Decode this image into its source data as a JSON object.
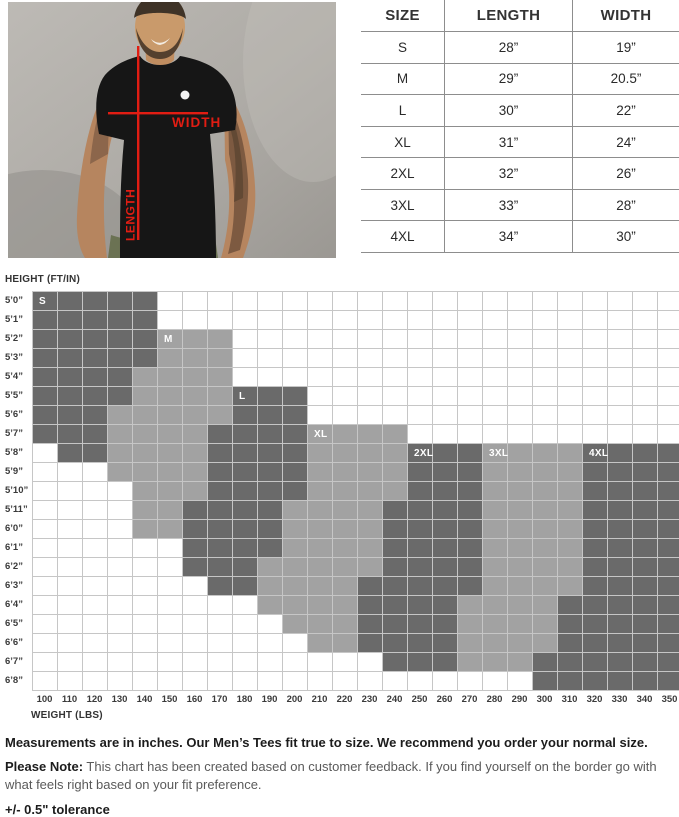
{
  "photo": {
    "width_label": "WIDTH",
    "length_label": "LENGTH",
    "accent_red": "#e11d13"
  },
  "size_table": {
    "headers": [
      "SIZE",
      "LENGTH",
      "WIDTH"
    ],
    "rows": [
      {
        "size": "S",
        "length": "28”",
        "width": "19”"
      },
      {
        "size": "M",
        "length": "29”",
        "width": "20.5”"
      },
      {
        "size": "L",
        "length": "30”",
        "width": "22”"
      },
      {
        "size": "XL",
        "length": "31”",
        "width": "24”"
      },
      {
        "size": "2XL",
        "length": "32”",
        "width": "26”"
      },
      {
        "size": "3XL",
        "length": "33”",
        "width": "28”"
      },
      {
        "size": "4XL",
        "length": "34”",
        "width": "30”"
      }
    ]
  },
  "fit_chart": {
    "y_axis_title": "HEIGHT (FT/IN)",
    "x_axis_title": "WEIGHT (LBS)",
    "colors": {
      "dark": "#6a6a6a",
      "medium": "#a2a2a2",
      "empty": "#ffffff",
      "gridline": "#c6c6c6"
    },
    "zone_labels": [
      {
        "text": "S",
        "row": 0,
        "col": 0
      },
      {
        "text": "M",
        "row": 2,
        "col": 5
      },
      {
        "text": "L",
        "row": 5,
        "col": 8
      },
      {
        "text": "XL",
        "row": 7,
        "col": 11
      },
      {
        "text": "2XL",
        "row": 8,
        "col": 15
      },
      {
        "text": "3XL",
        "row": 8,
        "col": 18
      },
      {
        "text": "4XL",
        "row": 8,
        "col": 22
      }
    ]
  },
  "chart_data": {
    "type": "heatmap",
    "title": "Size recommendation by height and weight",
    "xlabel": "WEIGHT (LBS)",
    "ylabel": "HEIGHT (FT/IN)",
    "x": [
      100,
      110,
      120,
      130,
      140,
      150,
      160,
      170,
      180,
      190,
      200,
      210,
      220,
      230,
      240,
      250,
      260,
      270,
      280,
      290,
      300,
      310,
      320,
      330,
      340,
      350
    ],
    "y": [
      "5’0”",
      "5’1”",
      "5’2”",
      "5’3”",
      "5’4”",
      "5’5”",
      "5’6”",
      "5’7”",
      "5’8”",
      "5’9”",
      "5’10”",
      "5’11”",
      "6’0”",
      "6’1”",
      "6’2”",
      "6’3”",
      "6’4”",
      "6’5”",
      "6’6”",
      "6’7”",
      "6’8”"
    ],
    "code_legend": {
      "S": "S",
      "M": "M",
      "L": "L",
      "X": "XL",
      "2": "2XL",
      "3": "3XL",
      "4": "4XL",
      ".": "none"
    },
    "color_rule": {
      "dark_codes": "S,L,2,4",
      "medium_codes": "M,X,3",
      "empty_code": "."
    },
    "matrix": [
      "SSSSS.....................",
      "SSSSS.....................",
      "SSSSSMMM..................",
      "SSSSSMMM..................",
      "SSSSMMMM..................",
      "SSSSMMMMLLL...............",
      "SSSMMMMMLLL...............",
      "SSSMMMMLLLLXXXX...........",
      ".SSMMMMLLLLXXXX22233334444",
      "...MMMMLLLLXXXX22233334444",
      "....MMMLLLLXXXX22233334444",
      "....MMLLLLXXXX222233334444",
      "....MMLLLLXXXX222233334444",
      "......LLLLXXXX222233334444",
      "......LLLXXXXX222233334444",
      ".......LLXXXX2222233334444",
      ".........XXXX2222333344444",
      "..........XXX2222333344444",
      "...........XX2222333344444",
      "..............222333444444",
      "....................444444"
    ]
  },
  "notes": {
    "main": "Measurements are in inches. Our Men’s Tees fit true to size. We recommend you order your normal size.",
    "note_label": "Please Note:",
    "note_body": " This chart has been created based on customer feedback. If you find yourself on the border go with what feels right based on your fit preference.",
    "tolerance": "+/- 0.5\" tolerance"
  }
}
